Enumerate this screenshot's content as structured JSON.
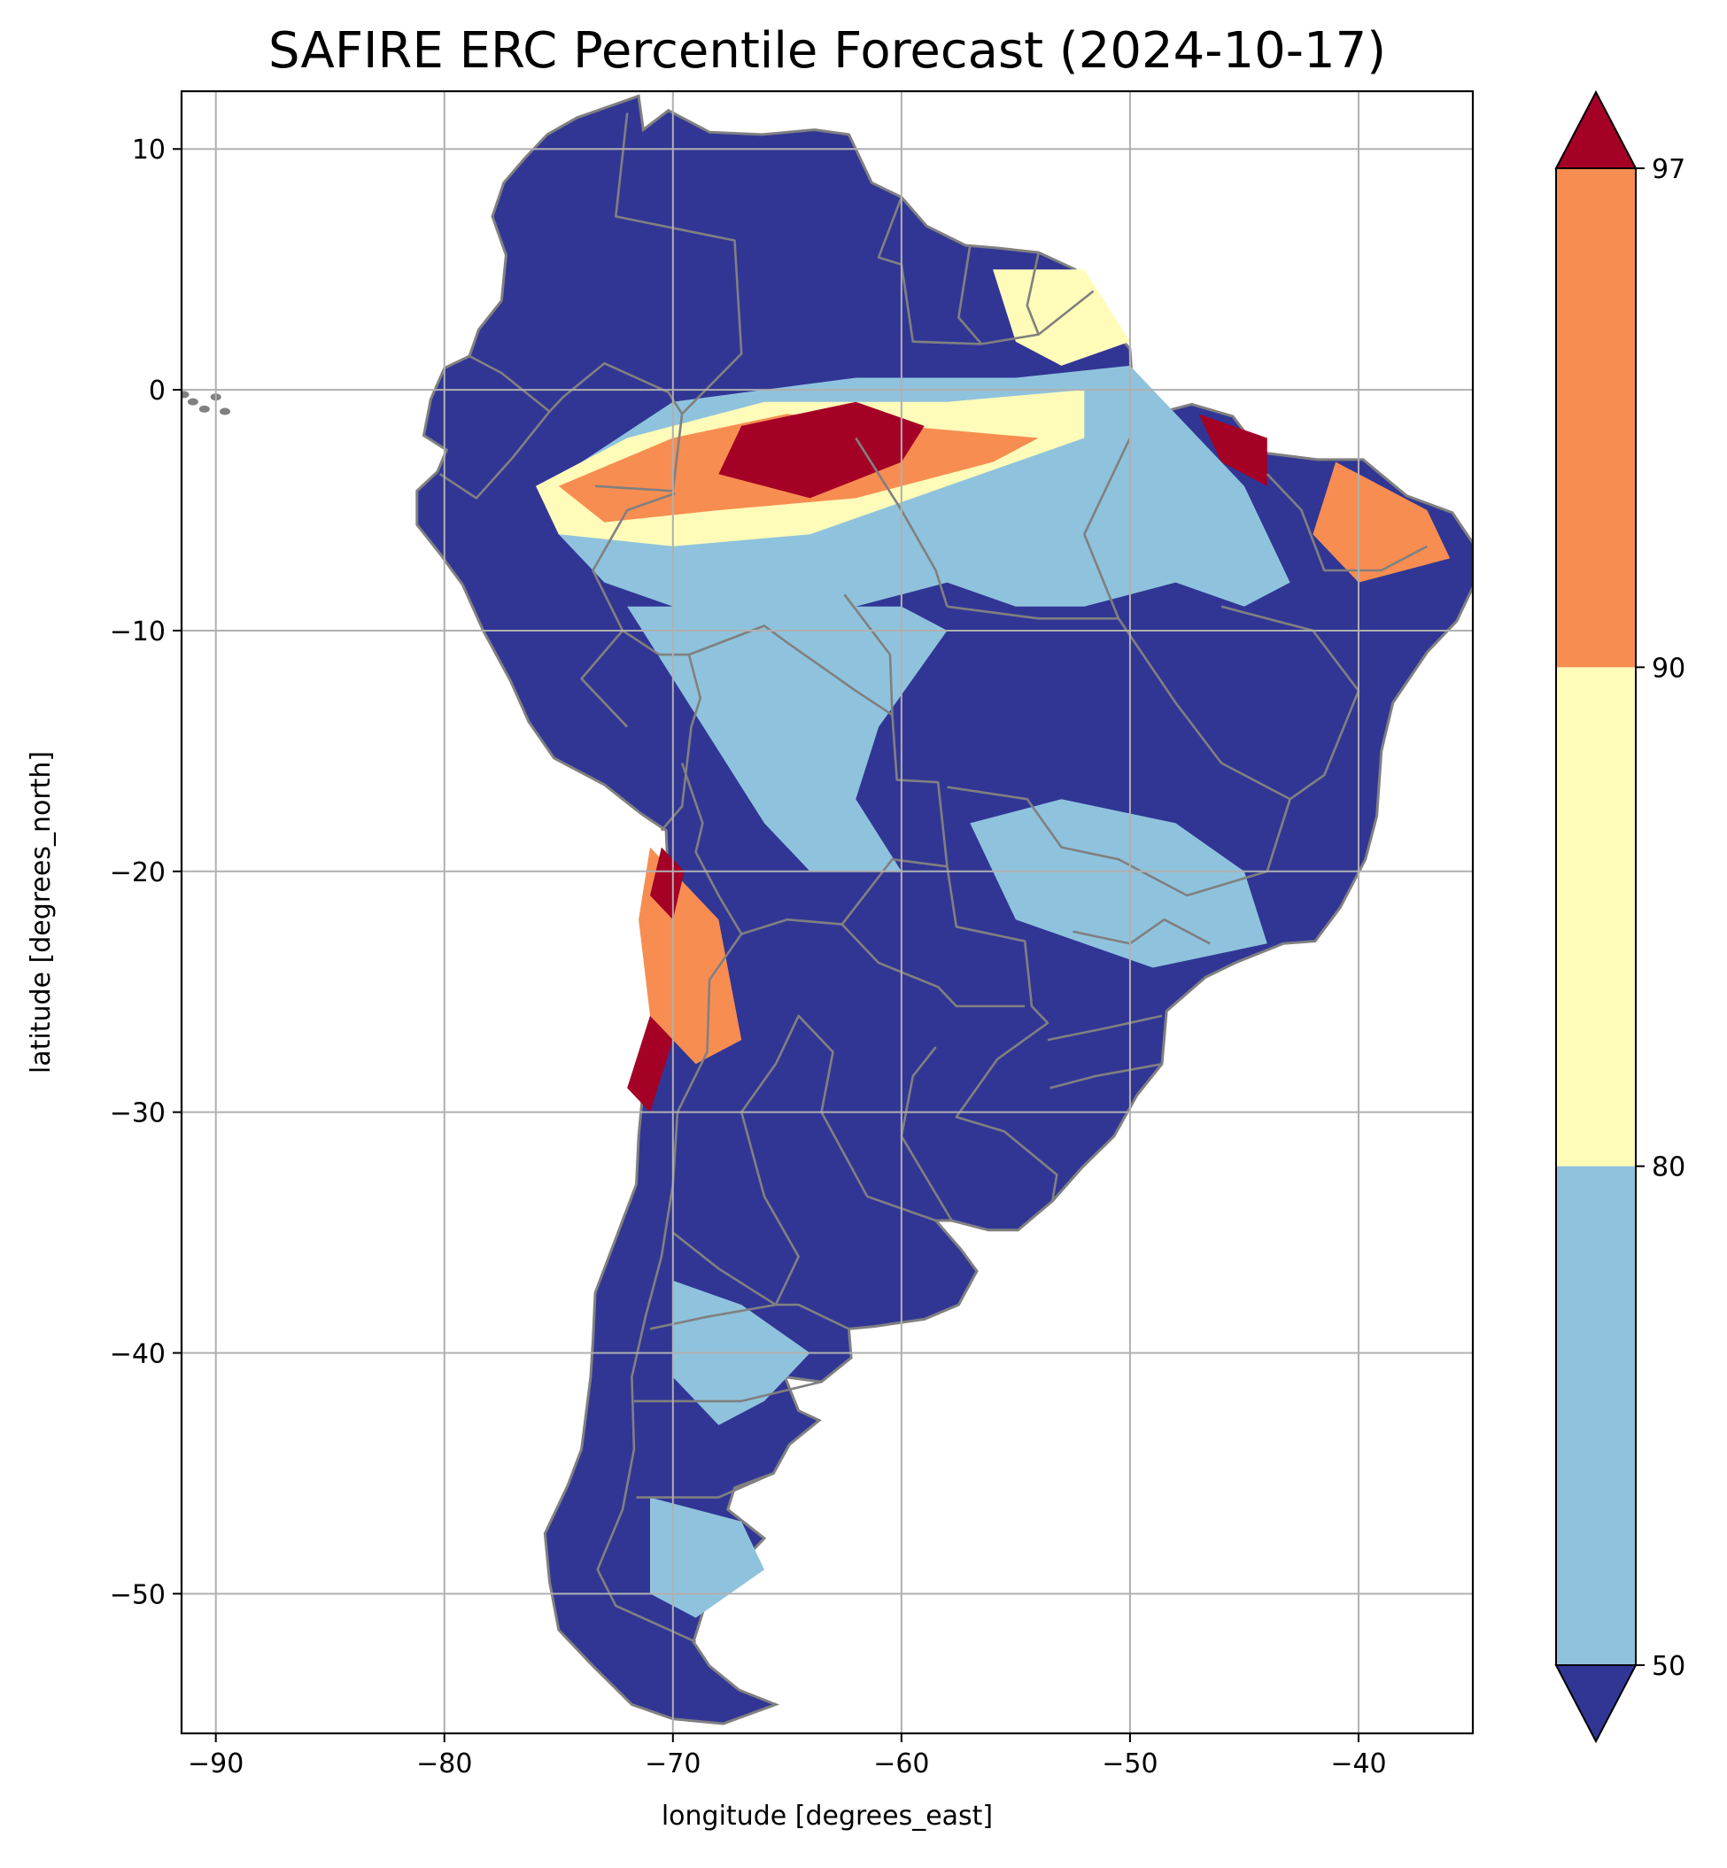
{
  "title": "SAFIRE ERC Percentile Forecast (2024-10-17)",
  "axes": {
    "xlabel": "longitude [degrees_east]",
    "ylabel": "latitude [degrees_north]",
    "xlim": [
      -91.5,
      -35
    ],
    "ylim": [
      -55.8,
      12.4
    ],
    "xticks": [
      -90,
      -80,
      -70,
      -60,
      -50,
      -40
    ],
    "yticks": [
      10,
      0,
      -10,
      -20,
      -30,
      -40,
      -50
    ],
    "xtick_labels": [
      "−90",
      "−80",
      "−70",
      "−60",
      "−50",
      "−40"
    ],
    "ytick_labels": [
      "10",
      "0",
      "−10",
      "−20",
      "−30",
      "−40",
      "−50"
    ],
    "grid": true
  },
  "colorbar": {
    "ticks": [
      50,
      80,
      90,
      97
    ],
    "tick_labels": [
      "50",
      "80",
      "90",
      "97"
    ],
    "extend": "both",
    "colors": {
      "below": "#313695",
      "50-80": "#8fc3dd",
      "80-90": "#fffbb9",
      "90-97": "#f88d51",
      "above": "#a50026"
    }
  },
  "colors": {
    "land_base": "#313695",
    "border": "#808080",
    "grid": "#b0b0b0"
  },
  "map_regions": [
    {
      "name": "amazon-north-percentile-50-80",
      "class": "50-80",
      "pts": [
        [
          -74,
          -3
        ],
        [
          -70,
          -0.5
        ],
        [
          -62,
          0.5
        ],
        [
          -55,
          0.5
        ],
        [
          -50,
          1
        ],
        [
          -48,
          -1
        ],
        [
          -45,
          -4
        ],
        [
          -43,
          -8
        ],
        [
          -45,
          -9
        ],
        [
          -48,
          -8
        ],
        [
          -52,
          -9
        ],
        [
          -55,
          -9
        ],
        [
          -58,
          -8
        ],
        [
          -62,
          -9
        ],
        [
          -66,
          -10
        ],
        [
          -70,
          -9
        ],
        [
          -73,
          -8
        ],
        [
          -75,
          -6
        ]
      ]
    },
    {
      "name": "amazon-central-percentile-50-80",
      "class": "50-80",
      "pts": [
        [
          -72,
          -9
        ],
        [
          -66,
          -9
        ],
        [
          -60,
          -9
        ],
        [
          -58,
          -10
        ],
        [
          -61,
          -14
        ],
        [
          -62,
          -17
        ],
        [
          -60,
          -20
        ],
        [
          -64,
          -20
        ],
        [
          -66,
          -18
        ],
        [
          -68,
          -15
        ],
        [
          -70,
          -12
        ]
      ]
    },
    {
      "name": "brazil-southeast-percentile-50-80",
      "class": "50-80",
      "pts": [
        [
          -57,
          -18
        ],
        [
          -53,
          -17
        ],
        [
          -48,
          -18
        ],
        [
          -45,
          -20
        ],
        [
          -44,
          -23
        ],
        [
          -49,
          -24
        ],
        [
          -55,
          -22
        ]
      ]
    },
    {
      "name": "amazon-percentile-80-90",
      "class": "80-90",
      "pts": [
        [
          -76,
          -4
        ],
        [
          -72,
          -2
        ],
        [
          -66,
          -0.5
        ],
        [
          -58,
          -0.5
        ],
        [
          -52,
          0
        ],
        [
          -52,
          -2
        ],
        [
          -58,
          -4
        ],
        [
          -64,
          -6
        ],
        [
          -70,
          -6.5
        ],
        [
          -75,
          -6
        ]
      ]
    },
    {
      "name": "french-guiana-percentile-80-90",
      "class": "80-90",
      "pts": [
        [
          -56,
          5
        ],
        [
          -52,
          5
        ],
        [
          -50,
          2
        ],
        [
          -53,
          1
        ],
        [
          -55,
          2
        ]
      ]
    },
    {
      "name": "amazon-percentile-90-97",
      "class": "90-97",
      "pts": [
        [
          -75,
          -4
        ],
        [
          -70,
          -2
        ],
        [
          -65,
          -1
        ],
        [
          -60,
          -1.5
        ],
        [
          -54,
          -2
        ],
        [
          -56,
          -3
        ],
        [
          -62,
          -4.5
        ],
        [
          -68,
          -5
        ],
        [
          -73,
          -5.5
        ]
      ]
    },
    {
      "name": "andes-percentile-90-97",
      "class": "90-97",
      "pts": [
        [
          -71,
          -19
        ],
        [
          -68,
          -22
        ],
        [
          -67,
          -27
        ],
        [
          -69,
          -28
        ],
        [
          -71,
          -26
        ],
        [
          -71.5,
          -22
        ]
      ]
    },
    {
      "name": "brazil-northeast-percentile-90-97",
      "class": "90-97",
      "pts": [
        [
          -41,
          -3
        ],
        [
          -37,
          -5
        ],
        [
          -36,
          -7
        ],
        [
          -40,
          -8
        ],
        [
          -42,
          -6
        ]
      ]
    },
    {
      "name": "amazon-percentile-above-97",
      "class": "above",
      "pts": [
        [
          -67,
          -1.5
        ],
        [
          -62,
          -0.5
        ],
        [
          -59,
          -1.5
        ],
        [
          -60,
          -3
        ],
        [
          -64,
          -4.5
        ],
        [
          -68,
          -3.5
        ]
      ]
    },
    {
      "name": "coast-maranhao-percentile-above-97",
      "class": "above",
      "pts": [
        [
          -47,
          -1
        ],
        [
          -44,
          -2
        ],
        [
          -44,
          -4
        ],
        [
          -46,
          -3
        ]
      ]
    },
    {
      "name": "andes-percentile-above-97",
      "class": "above",
      "pts": [
        [
          -70.5,
          -19
        ],
        [
          -69.5,
          -20
        ],
        [
          -70,
          -22
        ],
        [
          -71,
          -21
        ]
      ]
    },
    {
      "name": "chile-central-percentile-above-97",
      "class": "above",
      "pts": [
        [
          -71,
          -26
        ],
        [
          -70,
          -27
        ],
        [
          -71,
          -30
        ],
        [
          -72,
          -29
        ]
      ]
    },
    {
      "name": "patagonia-north-percentile-50-80",
      "class": "50-80",
      "pts": [
        [
          -70,
          -37
        ],
        [
          -67,
          -38
        ],
        [
          -64,
          -40
        ],
        [
          -66,
          -42
        ],
        [
          -68,
          -43
        ],
        [
          -70,
          -41
        ]
      ]
    },
    {
      "name": "patagonia-south-percentile-50-80",
      "class": "50-80",
      "pts": [
        [
          -71,
          -46
        ],
        [
          -67,
          -47
        ],
        [
          -66,
          -49
        ],
        [
          -69,
          -51
        ],
        [
          -71,
          -50
        ]
      ]
    }
  ]
}
